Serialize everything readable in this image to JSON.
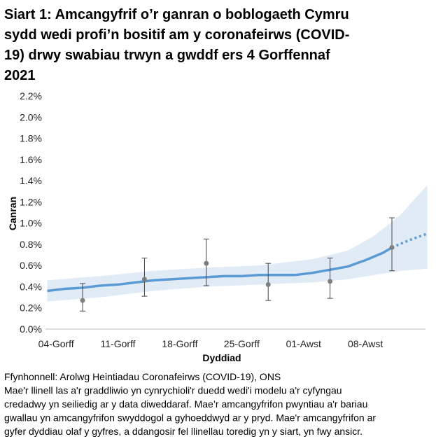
{
  "chart_data": {
    "type": "line",
    "title": [
      "Siart 1: Amcangyfrif o’r ganran o boblogaeth Cymru",
      "sydd wedi profi’n bositif am y coronafeirws (COVID-",
      "19) drwy swabiau trwyn a gwddf ers 4 Gorffennaf",
      "2021"
    ],
    "x_label": "Dyddiad",
    "y_label": "Canran",
    "notes": [
      "Ffynhonnell: Arolwg Heintiadau Coronafeirws (COVID-19), ONS",
      "Mae'r llinell las a'r graddliwio yn cynrychioli'r duedd wedi'i modelu a'r cyfyngau",
      "credadwy yn seiliedig ar y data diweddaraf. Mae’r amcangyfrifon pwyntiau a'r bariau",
      "gwallau yn amcangyfrifon swyddogol a gyhoeddwyd ar y pryd. Mae'r amcangyfrifon ar",
      "gyfer dyddiau olaf y gyfres, a ddangosir fel llinellau toredig yn y siart, yn fwy ansicr."
    ],
    "xlim": [
      -1.2,
      41.8
    ],
    "xticks": [
      {
        "value": 0,
        "label": "04-Gorff"
      },
      {
        "value": 7,
        "label": "11-Gorff"
      },
      {
        "value": 14,
        "label": "18-Gorff"
      },
      {
        "value": 21,
        "label": "25-Gorff"
      },
      {
        "value": 28,
        "label": "01-Awst"
      },
      {
        "value": 35,
        "label": "08-Awst"
      }
    ],
    "ylim": [
      0,
      2.2
    ],
    "yticks": [
      {
        "value": 0,
        "label": "0.0%"
      },
      {
        "value": 0.2,
        "label": "0.2%"
      },
      {
        "value": 0.4,
        "label": "0.4%"
      },
      {
        "value": 0.6,
        "label": "0.6%"
      },
      {
        "value": 0.8,
        "label": "0.8%"
      },
      {
        "value": 1.0,
        "label": "1.0%"
      },
      {
        "value": 1.2,
        "label": "1.2%"
      },
      {
        "value": 1.4,
        "label": "1.4%"
      },
      {
        "value": 1.6,
        "label": "1.6%"
      },
      {
        "value": 1.8,
        "label": "1.8%"
      },
      {
        "value": 2.0,
        "label": "2.0%"
      },
      {
        "value": 2.2,
        "label": "2.2%"
      }
    ],
    "line_color": "#5b9bd5",
    "band_color": "#dce7f4",
    "point_color": "#7f7f7f",
    "line": {
      "x": [
        -1,
        1,
        3,
        5,
        7,
        9,
        11,
        13,
        15,
        17,
        19,
        21,
        23,
        25,
        27,
        29,
        31,
        33,
        35,
        37,
        38
      ],
      "values": [
        0.36,
        0.38,
        0.39,
        0.41,
        0.42,
        0.44,
        0.46,
        0.47,
        0.48,
        0.49,
        0.5,
        0.5,
        0.51,
        0.51,
        0.51,
        0.53,
        0.56,
        0.59,
        0.65,
        0.72,
        0.77
      ]
    },
    "projection": {
      "x": [
        38,
        40,
        42
      ],
      "values": [
        0.77,
        0.84,
        0.9
      ]
    },
    "band": {
      "x": [
        -1,
        5,
        11,
        17,
        23,
        29,
        33,
        36,
        39,
        42
      ],
      "upper": [
        0.46,
        0.5,
        0.55,
        0.58,
        0.6,
        0.66,
        0.74,
        0.88,
        1.08,
        1.36
      ],
      "lower": [
        0.26,
        0.3,
        0.36,
        0.4,
        0.42,
        0.44,
        0.47,
        0.51,
        0.55,
        0.57
      ]
    },
    "estimates": {
      "x": [
        3,
        10,
        17,
        24,
        31,
        38
      ],
      "values": [
        0.27,
        0.47,
        0.62,
        0.42,
        0.45,
        0.77
      ],
      "lower": [
        0.17,
        0.31,
        0.41,
        0.27,
        0.29,
        0.55
      ],
      "upper": [
        0.43,
        0.67,
        0.85,
        0.62,
        0.67,
        1.05
      ]
    }
  }
}
